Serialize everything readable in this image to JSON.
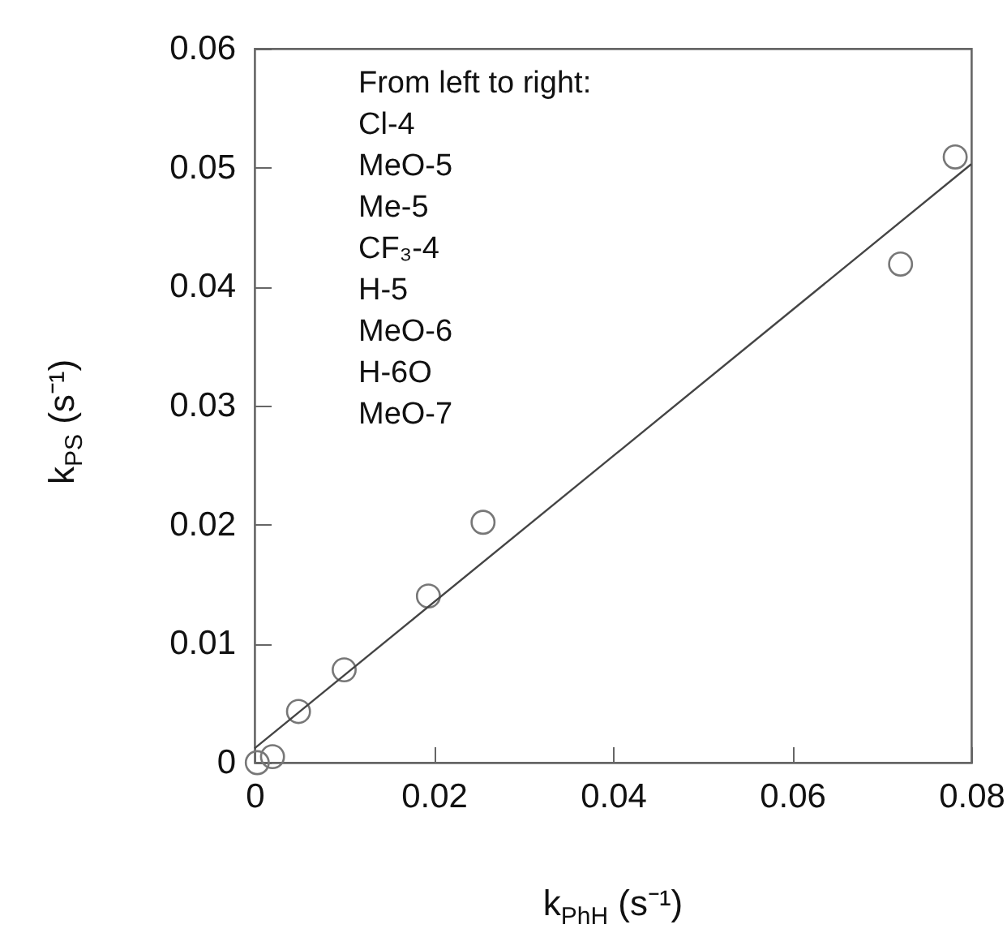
{
  "chart_data": {
    "type": "scatter",
    "xlabel": "k$_{PhH}$ (s⁻¹)",
    "ylabel": "k$_{PS}$ (s⁻¹)",
    "annotations": [
      "From left to right:",
      "Cl-4",
      "MeO-5",
      "Me-5",
      "CF₃-4",
      "H-5",
      "MeO-6",
      "H-6O",
      "MeO-7"
    ],
    "xlim": [
      0,
      0.08
    ],
    "ylim": [
      0,
      0.06
    ],
    "xticks": [
      0,
      0.02,
      0.04,
      0.06,
      0.08
    ],
    "yticks": [
      0,
      0.01,
      0.02,
      0.03,
      0.04,
      0.05,
      0.06
    ],
    "series": [
      {
        "type": "scatter",
        "marker": "circle",
        "color": "#777777",
        "x": [
          0.0003,
          0.002,
          0.0049,
          0.01,
          0.0194,
          0.0255,
          0.0721,
          0.0782
        ],
        "values": [
          0,
          0.0005,
          0.0043,
          0.0078,
          0.014,
          0.0202,
          0.0419,
          0.0509
        ]
      },
      {
        "type": "line",
        "line_style": "solid",
        "color": "#444444",
        "x": [
          0,
          0.08
        ],
        "values": [
          0.0012,
          0.0503
        ]
      }
    ]
  }
}
